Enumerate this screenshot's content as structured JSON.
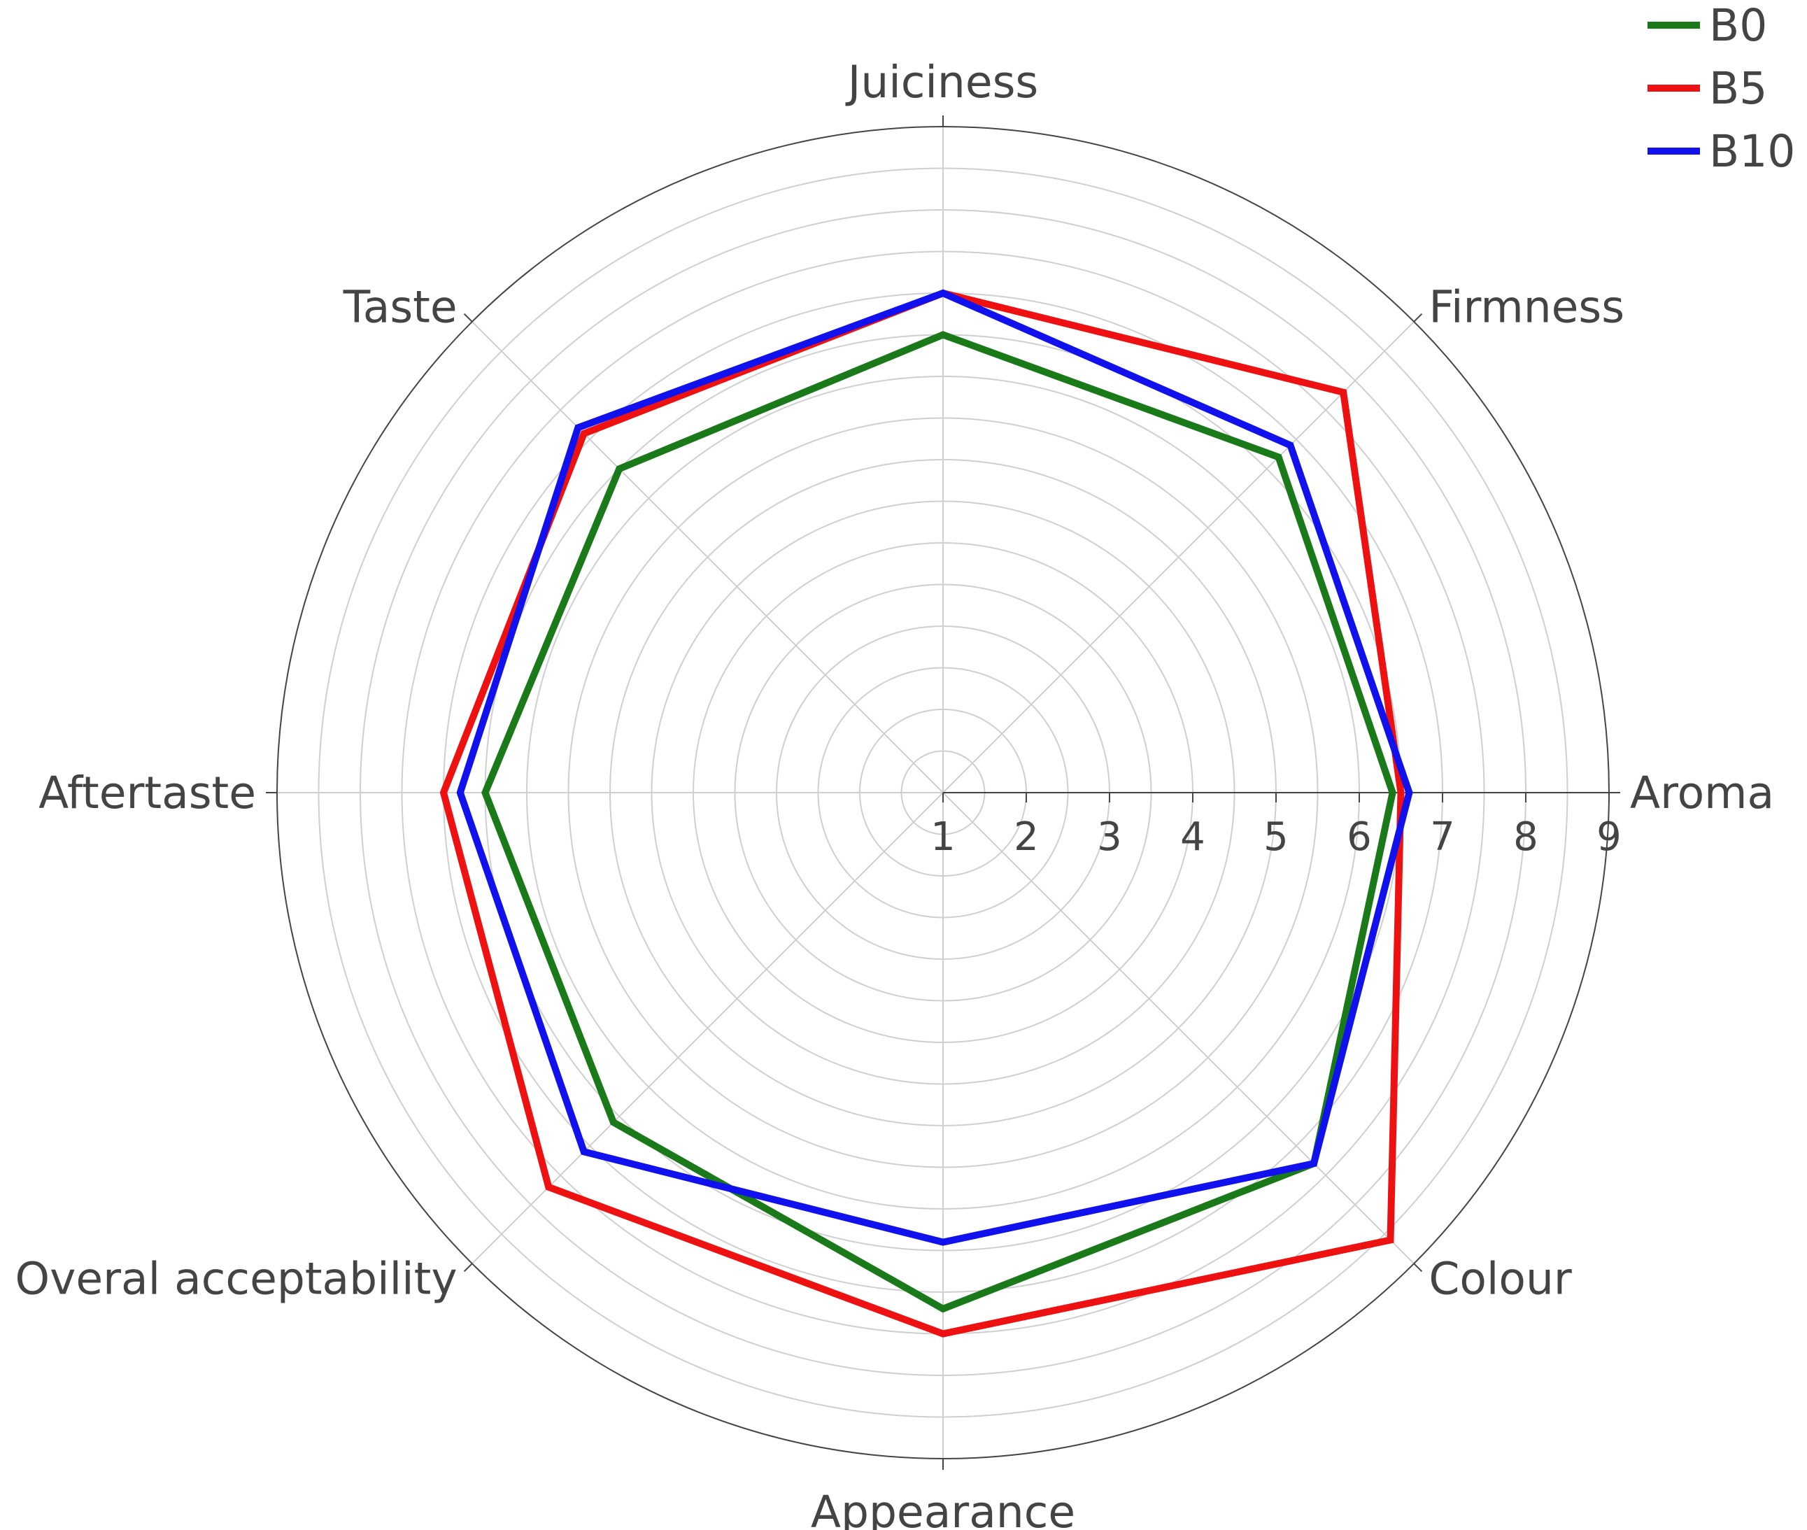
{
  "chart_data": {
    "type": "radar",
    "title": "",
    "categories": [
      "Aroma",
      "Firmness",
      "Juiciness",
      "Taste",
      "Aftertaste",
      "Overal acceptability",
      "Appearance",
      "Colour"
    ],
    "radial_ticks": [
      "1",
      "2",
      "3",
      "4",
      "5",
      "6",
      "7",
      "8",
      "9"
    ],
    "radial_range": [
      0,
      8
    ],
    "grid": true,
    "legend_position": "top-right",
    "series": [
      {
        "name": "B0",
        "color": "#1a7a1a",
        "values": [
          5.4,
          5.7,
          5.5,
          5.5,
          5.5,
          5.6,
          6.2,
          6.3
        ]
      },
      {
        "name": "B5",
        "color": "#ee1111",
        "values": [
          5.5,
          6.8,
          6.0,
          6.1,
          6.0,
          6.7,
          6.5,
          7.6
        ]
      },
      {
        "name": "B10",
        "color": "#1111ee",
        "values": [
          5.6,
          5.9,
          6.0,
          6.2,
          5.8,
          6.1,
          5.4,
          6.3
        ]
      }
    ]
  }
}
